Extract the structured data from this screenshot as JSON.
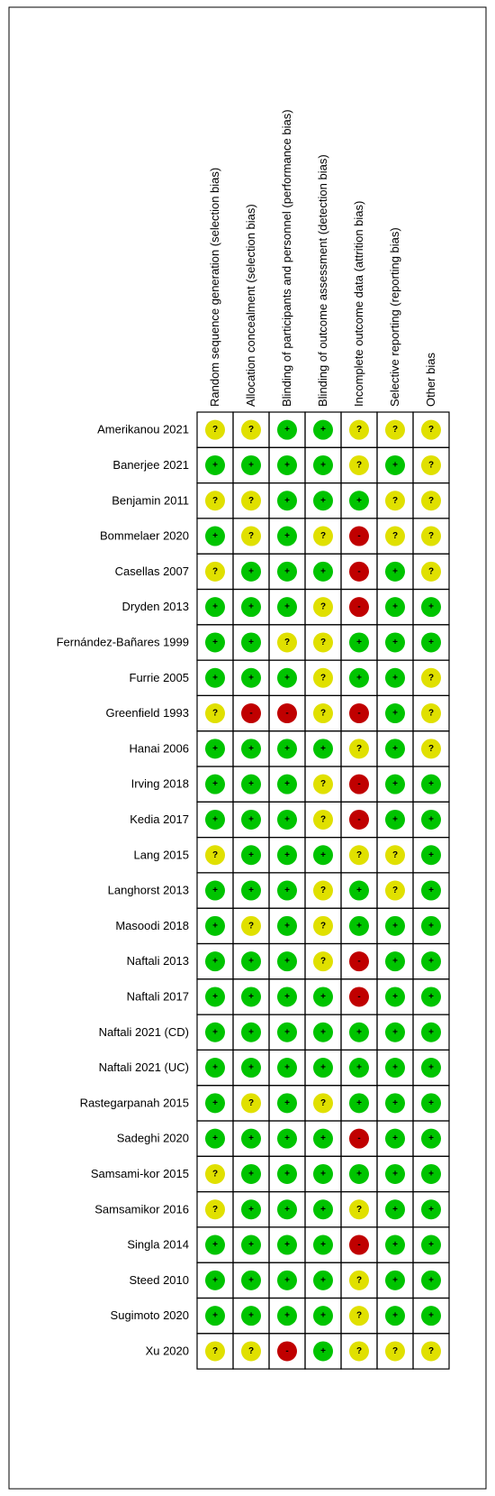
{
  "columns": [
    "Random sequence generation (selection bias)",
    "Allocation concealment (selection bias)",
    "Blinding of participants and personnel (performance bias)",
    "Blinding of outcome assessment (detection bias)",
    "Incomplete outcome data (attrition bias)",
    "Selective reporting (reporting bias)",
    "Other bias"
  ],
  "rows": [
    {
      "study": "Amerikanou 2021",
      "ratings": [
        "?",
        "?",
        "+",
        "+",
        "?",
        "?",
        "?"
      ]
    },
    {
      "study": "Banerjee 2021",
      "ratings": [
        "+",
        "+",
        "+",
        "+",
        "?",
        "+",
        "?"
      ]
    },
    {
      "study": "Benjamin 2011",
      "ratings": [
        "?",
        "?",
        "+",
        "+",
        "+",
        "?",
        "?"
      ]
    },
    {
      "study": "Bommelaer 2020",
      "ratings": [
        "+",
        "?",
        "+",
        "?",
        "-",
        "?",
        "?"
      ]
    },
    {
      "study": "Casellas 2007",
      "ratings": [
        "?",
        "+",
        "+",
        "+",
        "-",
        "+",
        "?"
      ]
    },
    {
      "study": "Dryden 2013",
      "ratings": [
        "+",
        "+",
        "+",
        "?",
        "-",
        "+",
        "+"
      ]
    },
    {
      "study": "Fernández-Bañares 1999",
      "ratings": [
        "+",
        "+",
        "?",
        "?",
        "+",
        "+",
        "+"
      ]
    },
    {
      "study": "Furrie 2005",
      "ratings": [
        "+",
        "+",
        "+",
        "?",
        "+",
        "+",
        "?"
      ]
    },
    {
      "study": "Greenfield 1993",
      "ratings": [
        "?",
        "-",
        "-",
        "?",
        "-",
        "+",
        "?"
      ]
    },
    {
      "study": "Hanai 2006",
      "ratings": [
        "+",
        "+",
        "+",
        "+",
        "?",
        "+",
        "?"
      ]
    },
    {
      "study": "Irving 2018",
      "ratings": [
        "+",
        "+",
        "+",
        "?",
        "-",
        "+",
        "+"
      ]
    },
    {
      "study": "Kedia 2017",
      "ratings": [
        "+",
        "+",
        "+",
        "?",
        "-",
        "+",
        "+"
      ]
    },
    {
      "study": "Lang 2015",
      "ratings": [
        "?",
        "+",
        "+",
        "+",
        "?",
        "?",
        "+"
      ]
    },
    {
      "study": "Langhorst 2013",
      "ratings": [
        "+",
        "+",
        "+",
        "?",
        "+",
        "?",
        "+"
      ]
    },
    {
      "study": "Masoodi 2018",
      "ratings": [
        "+",
        "?",
        "+",
        "?",
        "+",
        "+",
        "+"
      ]
    },
    {
      "study": "Naftali 2013",
      "ratings": [
        "+",
        "+",
        "+",
        "?",
        "-",
        "+",
        "+"
      ]
    },
    {
      "study": "Naftali 2017",
      "ratings": [
        "+",
        "+",
        "+",
        "+",
        "-",
        "+",
        "+"
      ]
    },
    {
      "study": "Naftali 2021 (CD)",
      "ratings": [
        "+",
        "+",
        "+",
        "+",
        "+",
        "+",
        "+"
      ]
    },
    {
      "study": "Naftali 2021 (UC)",
      "ratings": [
        "+",
        "+",
        "+",
        "+",
        "+",
        "+",
        "+"
      ]
    },
    {
      "study": "Rastegarpanah 2015",
      "ratings": [
        "+",
        "?",
        "+",
        "?",
        "+",
        "+",
        "+"
      ]
    },
    {
      "study": "Sadeghi 2020",
      "ratings": [
        "+",
        "+",
        "+",
        "+",
        "-",
        "+",
        "+"
      ]
    },
    {
      "study": "Samsami-kor 2015",
      "ratings": [
        "?",
        "+",
        "+",
        "+",
        "+",
        "+",
        "+"
      ]
    },
    {
      "study": "Samsamikor 2016",
      "ratings": [
        "?",
        "+",
        "+",
        "+",
        "?",
        "+",
        "+"
      ]
    },
    {
      "study": "Singla 2014",
      "ratings": [
        "+",
        "+",
        "+",
        "+",
        "-",
        "+",
        "+"
      ]
    },
    {
      "study": "Steed 2010",
      "ratings": [
        "+",
        "+",
        "+",
        "+",
        "?",
        "+",
        "+"
      ]
    },
    {
      "study": "Sugimoto 2020",
      "ratings": [
        "+",
        "+",
        "+",
        "+",
        "?",
        "+",
        "+"
      ]
    },
    {
      "study": "Xu 2020",
      "ratings": [
        "?",
        "?",
        "-",
        "+",
        "?",
        "?",
        "?"
      ]
    }
  ]
}
